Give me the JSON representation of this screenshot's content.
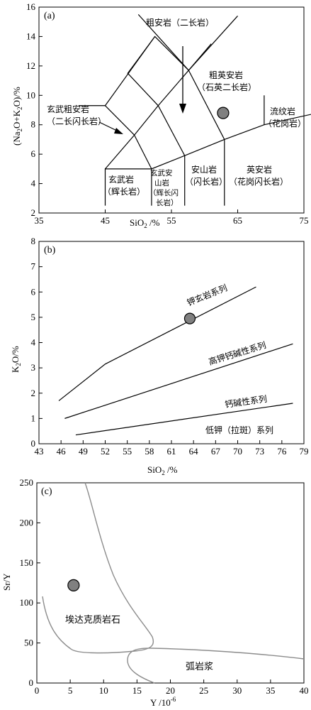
{
  "chart_data": [
    {
      "panel_label": "(a)",
      "type": "scatter",
      "xlabel": "SiO2 /%",
      "ylabel": "(Na2O+K2O)/%",
      "xlim": [
        35,
        75
      ],
      "ylim": [
        2,
        16
      ],
      "xticks": [
        "35",
        "45",
        "55",
        "65",
        "75"
      ],
      "yticks": [
        "2",
        "4",
        "6",
        "8",
        "10",
        "12",
        "14",
        "16"
      ],
      "point": {
        "x": 62.8,
        "y": 8.8
      },
      "fields": [
        {
          "lines": [
            "粗安岩（二长岩）"
          ]
        },
        {
          "lines": [
            "粗英安岩",
            "（石英二长岩）"
          ]
        },
        {
          "lines": [
            "玄武粗安岩",
            "（二长闪长岩）"
          ]
        },
        {
          "lines": [
            "流纹岩",
            "（花岗岩）"
          ]
        },
        {
          "lines": [
            "玄武岩",
            "（辉长岩）"
          ]
        },
        {
          "lines": [
            "玄武安",
            "山岩",
            "（辉长闪",
            "长岩）"
          ]
        },
        {
          "lines": [
            "安山岩",
            "（闪长岩）"
          ]
        },
        {
          "lines": [
            "英安岩",
            "（花岗闪长岩）"
          ]
        }
      ]
    },
    {
      "panel_label": "(b)",
      "type": "line",
      "xlabel": "SiO2 /%",
      "ylabel": "K2O/%",
      "xlim": [
        43,
        79
      ],
      "ylim": [
        0,
        8
      ],
      "xticks": [
        "43",
        "46",
        "49",
        "52",
        "55",
        "58",
        "61",
        "64",
        "67",
        "70",
        "73",
        "76",
        "79"
      ],
      "yticks": [
        "0",
        "1",
        "2",
        "3",
        "4",
        "5",
        "6",
        "7",
        "8"
      ],
      "point": {
        "x": 63.5,
        "y": 4.95
      },
      "series": [
        {
          "x": [
            45.7,
            52,
            72.5
          ],
          "y": [
            1.7,
            3.15,
            6.2
          ]
        },
        {
          "x": [
            46.5,
            77.5
          ],
          "y": [
            1.0,
            3.95
          ]
        },
        {
          "x": [
            48,
            77.5
          ],
          "y": [
            0.35,
            1.6
          ]
        }
      ],
      "series_labels": [
        "钾玄岩系列",
        "高钾钙碱性系列",
        "钙碱性系列",
        "低钾（拉斑）系列"
      ]
    },
    {
      "panel_label": "(c)",
      "type": "scatter",
      "xlabel": "Y /10^-6",
      "ylabel": "Sr/Y",
      "xlim": [
        0,
        40
      ],
      "ylim": [
        0,
        250
      ],
      "xticks": [
        "0",
        "5",
        "10",
        "15",
        "20",
        "25",
        "30",
        "35",
        "40"
      ],
      "yticks": [
        "0",
        "50",
        "100",
        "150",
        "200",
        "250"
      ],
      "point": {
        "x": 5.5,
        "y": 122
      },
      "fields": [
        {
          "label": "埃达克质岩石"
        },
        {
          "label": "弧岩浆"
        }
      ]
    }
  ]
}
